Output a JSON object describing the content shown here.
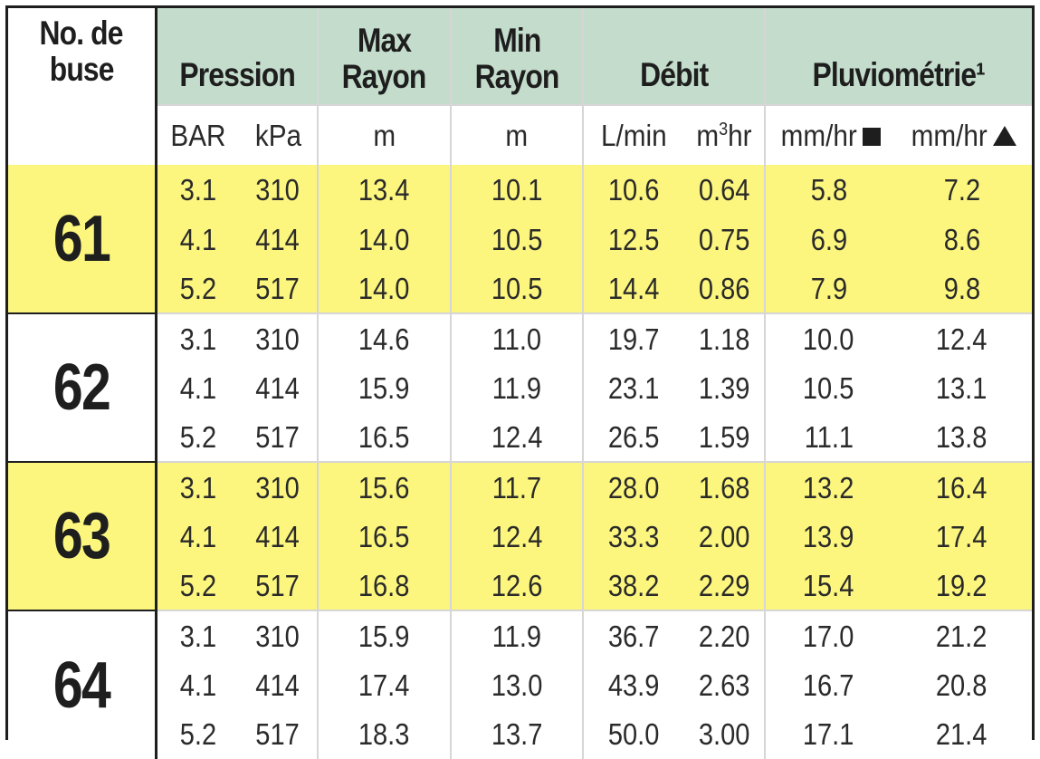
{
  "headers": {
    "nozzle": [
      "No. de",
      "buse"
    ],
    "pression": "Pression",
    "max_rayon": [
      "Max",
      "Rayon"
    ],
    "min_rayon": [
      "Min",
      "Rayon"
    ],
    "debit": "Débit",
    "pluvio": "Pluviométrie¹"
  },
  "units": {
    "bar": "BAR",
    "kpa": "kPa",
    "max_m": "m",
    "min_m": "m",
    "lmin": "L/min",
    "m3hr_base": "m",
    "m3hr_sup": "3",
    "m3hr_rest": "hr",
    "mmhr_sq": "mm/hr",
    "mmhr_tri": "mm/hr"
  },
  "symbols": {
    "pluvio_a": "filled-square-icon",
    "pluvio_b": "filled-triangle-icon"
  },
  "colors": {
    "header_green": "#c3dccb",
    "row_yellow": "#fcf67e",
    "border": "#1e1e1e"
  },
  "groups": [
    {
      "nozzle": "61",
      "highlight": true,
      "rows": [
        {
          "bar": "3.1",
          "kpa": "310",
          "max": "13.4",
          "min": "10.1",
          "lmin": "10.6",
          "m3hr": "0.64",
          "sq": "5.8",
          "tri": "7.2"
        },
        {
          "bar": "4.1",
          "kpa": "414",
          "max": "14.0",
          "min": "10.5",
          "lmin": "12.5",
          "m3hr": "0.75",
          "sq": "6.9",
          "tri": "8.6"
        },
        {
          "bar": "5.2",
          "kpa": "517",
          "max": "14.0",
          "min": "10.5",
          "lmin": "14.4",
          "m3hr": "0.86",
          "sq": "7.9",
          "tri": "9.8"
        }
      ]
    },
    {
      "nozzle": "62",
      "highlight": false,
      "rows": [
        {
          "bar": "3.1",
          "kpa": "310",
          "max": "14.6",
          "min": "11.0",
          "lmin": "19.7",
          "m3hr": "1.18",
          "sq": "10.0",
          "tri": "12.4"
        },
        {
          "bar": "4.1",
          "kpa": "414",
          "max": "15.9",
          "min": "11.9",
          "lmin": "23.1",
          "m3hr": "1.39",
          "sq": "10.5",
          "tri": "13.1"
        },
        {
          "bar": "5.2",
          "kpa": "517",
          "max": "16.5",
          "min": "12.4",
          "lmin": "26.5",
          "m3hr": "1.59",
          "sq": "11.1",
          "tri": "13.8"
        }
      ]
    },
    {
      "nozzle": "63",
      "highlight": true,
      "rows": [
        {
          "bar": "3.1",
          "kpa": "310",
          "max": "15.6",
          "min": "11.7",
          "lmin": "28.0",
          "m3hr": "1.68",
          "sq": "13.2",
          "tri": "16.4"
        },
        {
          "bar": "4.1",
          "kpa": "414",
          "max": "16.5",
          "min": "12.4",
          "lmin": "33.3",
          "m3hr": "2.00",
          "sq": "13.9",
          "tri": "17.4"
        },
        {
          "bar": "5.2",
          "kpa": "517",
          "max": "16.8",
          "min": "12.6",
          "lmin": "38.2",
          "m3hr": "2.29",
          "sq": "15.4",
          "tri": "19.2"
        }
      ]
    },
    {
      "nozzle": "64",
      "highlight": false,
      "rows": [
        {
          "bar": "3.1",
          "kpa": "310",
          "max": "15.9",
          "min": "11.9",
          "lmin": "36.7",
          "m3hr": "2.20",
          "sq": "17.0",
          "tri": "21.2"
        },
        {
          "bar": "4.1",
          "kpa": "414",
          "max": "17.4",
          "min": "13.0",
          "lmin": "43.9",
          "m3hr": "2.63",
          "sq": "16.7",
          "tri": "20.8"
        },
        {
          "bar": "5.2",
          "kpa": "517",
          "max": "18.3",
          "min": "13.7",
          "lmin": "50.0",
          "m3hr": "3.00",
          "sq": "17.1",
          "tri": "21.4"
        }
      ]
    }
  ]
}
